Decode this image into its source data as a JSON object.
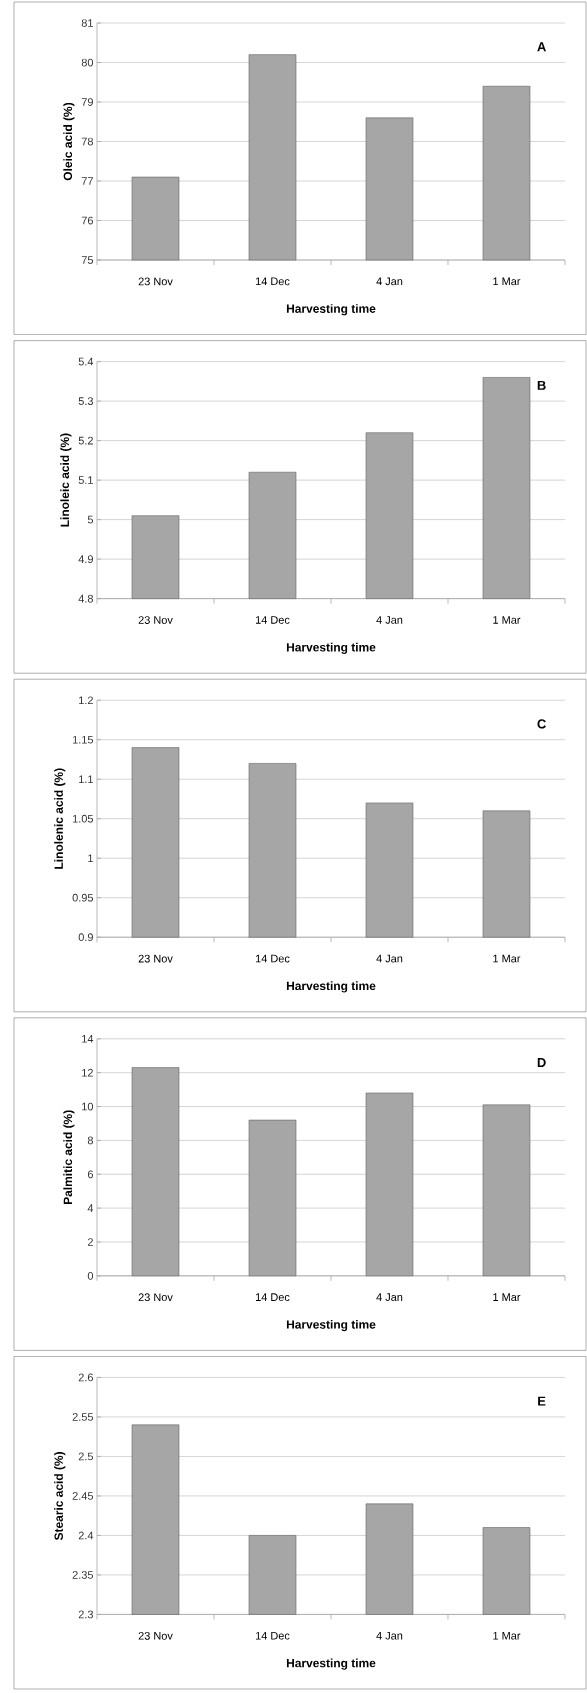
{
  "chart_data": [
    {
      "type": "bar",
      "categories": [
        "23 Nov",
        "14 Dec",
        "4 Jan",
        "1 Mar"
      ],
      "values": [
        77.1,
        80.2,
        78.6,
        79.4
      ],
      "color": "#a6a6a6",
      "ylim": [
        75,
        81
      ],
      "yticks": [
        75,
        76,
        77,
        78,
        79,
        80,
        81
      ],
      "grid": "y",
      "ylabel": "Oleic acid (%)",
      "xlabel": "Harvesting time",
      "annotations": [
        "A"
      ]
    },
    {
      "type": "bar",
      "categories": [
        "23 Nov",
        "14 Dec",
        "4 Jan",
        "1 Mar"
      ],
      "values": [
        5.01,
        5.12,
        5.22,
        5.36
      ],
      "color": "#a6a6a6",
      "ylim": [
        4.8,
        5.4
      ],
      "yticks": [
        4.8,
        4.9,
        5,
        5.1,
        5.2,
        5.3,
        5.4
      ],
      "grid": "y",
      "ylabel": "Linoleic acid (%)",
      "xlabel": "Harvesting time",
      "annotations": [
        "B"
      ]
    },
    {
      "type": "bar",
      "categories": [
        "23 Nov",
        "14 Dec",
        "4 Jan",
        "1 Mar"
      ],
      "values": [
        1.14,
        1.12,
        1.07,
        1.06
      ],
      "color": "#a6a6a6",
      "ylim": [
        0.9,
        1.2
      ],
      "yticks": [
        0.9,
        0.95,
        1,
        1.05,
        1.1,
        1.15,
        1.2
      ],
      "grid": "y",
      "ylabel": "Linolenic acid (%)",
      "xlabel": "Harvesting time",
      "annotations": [
        "C"
      ]
    },
    {
      "type": "bar",
      "categories": [
        "23 Nov",
        "14 Dec",
        "4 Jan",
        "1 Mar"
      ],
      "values": [
        12.3,
        9.2,
        10.8,
        10.1
      ],
      "color": "#a6a6a6",
      "ylim": [
        0,
        14
      ],
      "yticks": [
        0,
        2,
        4,
        6,
        8,
        10,
        12,
        14
      ],
      "grid": "y",
      "ylabel": "Palmitic acid (%)",
      "xlabel": "Harvesting time",
      "annotations": [
        "D"
      ]
    },
    {
      "type": "bar",
      "categories": [
        "23 Nov",
        "14 Dec",
        "4 Jan",
        "1 Mar"
      ],
      "values": [
        2.54,
        2.4,
        2.44,
        2.41
      ],
      "color": "#a6a6a6",
      "ylim": [
        2.3,
        2.6
      ],
      "yticks": [
        2.3,
        2.35,
        2.4,
        2.45,
        2.5,
        2.55,
        2.6
      ],
      "grid": "y",
      "ylabel": "Stearic acid (%)",
      "xlabel": "Harvesting time",
      "annotations": [
        "E"
      ]
    }
  ]
}
